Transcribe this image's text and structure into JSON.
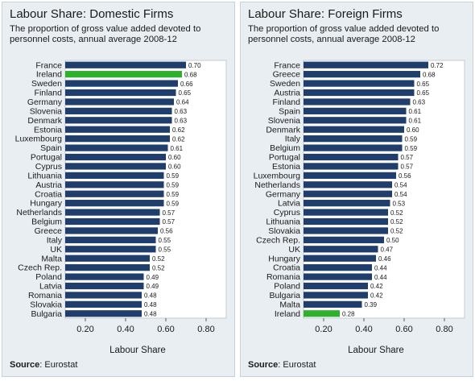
{
  "chart_data": [
    {
      "type": "bar",
      "orientation": "horizontal",
      "title": "Labour Share: Domestic Firms",
      "subtitle": "The proportion of gross value added devoted to personnel costs, annual average 2008-12",
      "xlabel": "Labour Share",
      "ylabel": "",
      "xlim": [
        0.1,
        0.9
      ],
      "xticks": [
        "0.20",
        "0.40",
        "0.60",
        "0.80"
      ],
      "grid": false,
      "source_label": "Source",
      "source_value": "Eurostat",
      "bar_color": "#1f3e6c",
      "highlight_color": "#2fb12f",
      "highlight": "Ireland",
      "categories": [
        "France",
        "Ireland",
        "Sweden",
        "Finland",
        "Germany",
        "Slovenia",
        "Denmark",
        "Estonia",
        "Luxembourg",
        "Spain",
        "Portugal",
        "Cyprus",
        "Lithuania",
        "Austria",
        "Croatia",
        "Hungary",
        "Netherlands",
        "Belgium",
        "Greece",
        "Italy",
        "UK",
        "Malta",
        "Czech Rep.",
        "Poland",
        "Latvia",
        "Romania",
        "Slovakia",
        "Bulgaria"
      ],
      "values": [
        0.7,
        0.68,
        0.66,
        0.65,
        0.64,
        0.63,
        0.63,
        0.62,
        0.62,
        0.61,
        0.6,
        0.6,
        0.59,
        0.59,
        0.59,
        0.59,
        0.57,
        0.57,
        0.56,
        0.55,
        0.55,
        0.52,
        0.52,
        0.49,
        0.49,
        0.48,
        0.48,
        0.48
      ],
      "value_labels": [
        "0.70",
        "0.68",
        "0.66",
        "0.65",
        "0.64",
        "0.63",
        "0.63",
        "0.62",
        "0.62",
        "0.61",
        "0.60",
        "0.60",
        "0.59",
        "0.59",
        "0.59",
        "0.59",
        "0.57",
        "0.57",
        "0.56",
        "0.55",
        "0.55",
        "0.52",
        "0.52",
        "0.49",
        "0.49",
        "0.48",
        "0.48",
        "0.48"
      ]
    },
    {
      "type": "bar",
      "orientation": "horizontal",
      "title": "Labour Share: Foreign Firms",
      "subtitle": "The proportion of gross value added devoted to personnel costs, annual average 2008-12",
      "xlabel": "Labour Share",
      "ylabel": "",
      "xlim": [
        0.1,
        0.9
      ],
      "xticks": [
        "0.20",
        "0.40",
        "0.60",
        "0.80"
      ],
      "grid": false,
      "source_label": "Source",
      "source_value": "Eurostat",
      "bar_color": "#1f3e6c",
      "highlight_color": "#2fb12f",
      "highlight": "Ireland",
      "categories": [
        "France",
        "Greece",
        "Sweden",
        "Austria",
        "Finland",
        "Spain",
        "Slovenia",
        "Denmark",
        "Italy",
        "Belgium",
        "Portugal",
        "Estonia",
        "Luxembourg",
        "Netherlands",
        "Germany",
        "Latvia",
        "Cyprus",
        "Lithuania",
        "Slovakia",
        "Czech Rep.",
        "UK",
        "Hungary",
        "Croatia",
        "Romania",
        "Poland",
        "Bulgaria",
        "Malta",
        "Ireland"
      ],
      "values": [
        0.72,
        0.68,
        0.65,
        0.65,
        0.63,
        0.61,
        0.61,
        0.6,
        0.59,
        0.59,
        0.57,
        0.57,
        0.56,
        0.54,
        0.54,
        0.53,
        0.52,
        0.52,
        0.52,
        0.5,
        0.47,
        0.46,
        0.44,
        0.44,
        0.42,
        0.42,
        0.39,
        0.28
      ],
      "value_labels": [
        "0.72",
        "0.68",
        "0.65",
        "0.65",
        "0.63",
        "0.61",
        "0.61",
        "0.60",
        "0.59",
        "0.59",
        "0.57",
        "0.57",
        "0.56",
        "0.54",
        "0.54",
        "0.53",
        "0.52",
        "0.52",
        "0.52",
        "0.50",
        "0.47",
        "0.46",
        "0.44",
        "0.44",
        "0.42",
        "0.42",
        "0.39",
        "0.28"
      ]
    }
  ]
}
